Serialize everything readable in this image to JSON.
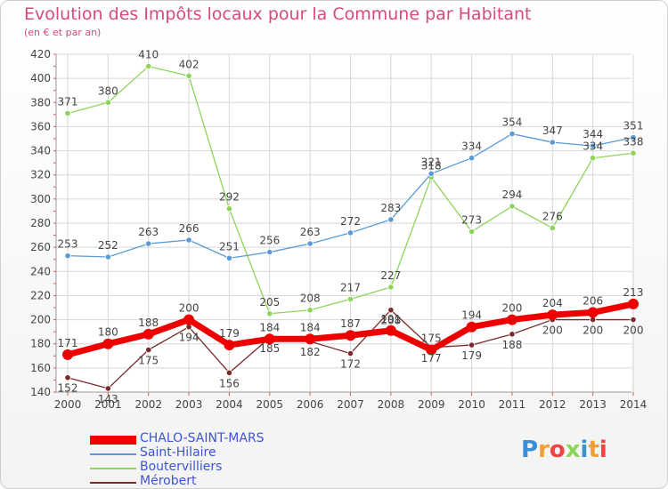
{
  "chart_data": {
    "type": "line",
    "title": "Evolution des Impôts locaux pour la Commune par Habitant",
    "subtitle": "(en € et par an)",
    "xlabel": "",
    "ylabel": "",
    "categories": [
      "2000",
      "2001",
      "2002",
      "2003",
      "2004",
      "2005",
      "2006",
      "2007",
      "2008",
      "2009",
      "2010",
      "2011",
      "2012",
      "2013",
      "2014"
    ],
    "ylim": [
      140,
      420
    ],
    "yticks": [
      140,
      160,
      180,
      200,
      220,
      240,
      260,
      280,
      300,
      320,
      340,
      360,
      380,
      400,
      420
    ],
    "grid": true,
    "legend_position": "bottom-left",
    "series": [
      {
        "name": "CHALO-SAINT-MARS",
        "color": "#ee0000",
        "values": [
          171,
          180,
          188,
          200,
          179,
          184,
          184,
          187,
          191,
          175,
          194,
          200,
          204,
          206,
          213
        ]
      },
      {
        "name": "Saint-Hilaire",
        "color": "#5b9bd5",
        "values": [
          253,
          252,
          263,
          266,
          251,
          256,
          263,
          272,
          283,
          321,
          334,
          354,
          347,
          344,
          351
        ]
      },
      {
        "name": "Boutervilliers",
        "color": "#8ed45a",
        "values": [
          371,
          380,
          410,
          402,
          292,
          205,
          208,
          217,
          227,
          318,
          273,
          294,
          276,
          334,
          338
        ]
      },
      {
        "name": "Mérobert",
        "color": "#7a2a2a",
        "values": [
          152,
          143,
          175,
          194,
          156,
          185,
          182,
          172,
          208,
          177,
          179,
          188,
          200,
          200,
          200
        ]
      }
    ]
  },
  "logo": {
    "letters": [
      "P",
      "r",
      "o",
      "x",
      "i",
      "t",
      "i"
    ],
    "colors": [
      "#3a8fd6",
      "#f0a030",
      "#ee4444",
      "#8ed45a",
      "#3a8fd6",
      "#f0a030",
      "#ee4444"
    ]
  }
}
